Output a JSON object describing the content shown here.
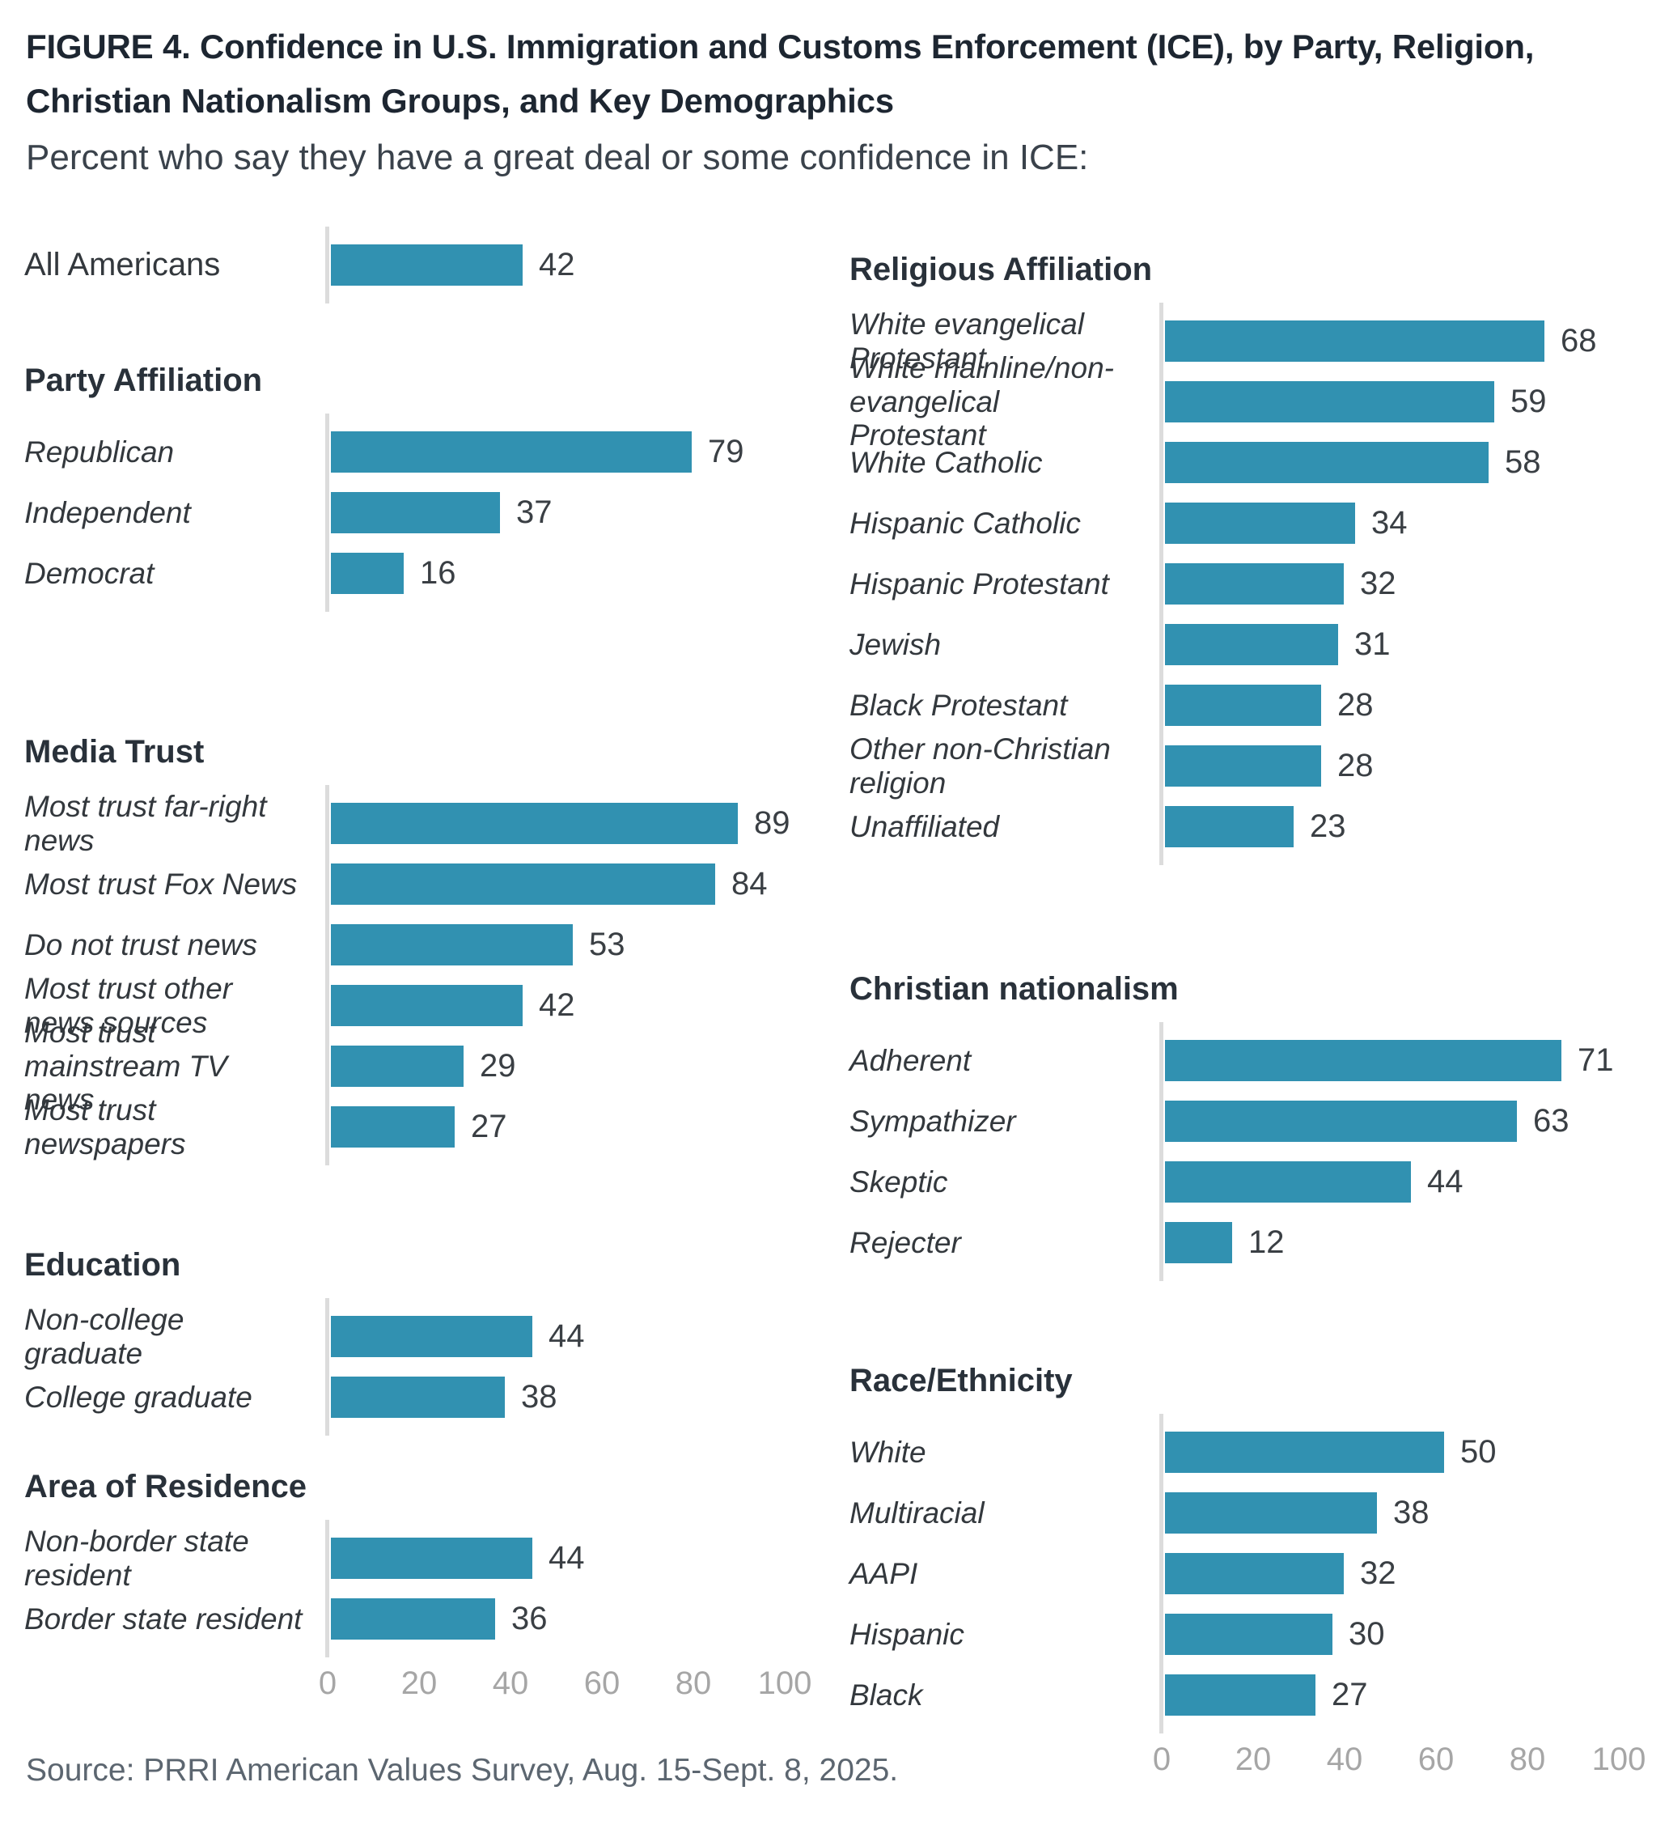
{
  "colors": {
    "bar": "#3191b1",
    "axis": "#dcdcdc",
    "tick": "#a6a6a6",
    "title": "#1d2631"
  },
  "chart_data": {
    "type": "bar",
    "orientation": "horizontal",
    "title": "FIGURE 4. Confidence in U.S. Immigration and Customs Enforcement (ICE), by Party, Religion, Christian Nationalism Groups, and Key Demographics",
    "subtitle": "Percent who say they have a great deal or some confidence in ICE:",
    "source": "Source: PRRI American Values Survey, Aug. 15-Sept. 8, 2025.",
    "unit": "percent",
    "xlim": [
      0,
      100
    ],
    "x_ticks": [
      0,
      20,
      40,
      60,
      80,
      100
    ],
    "grid": false,
    "legend": "none",
    "panels": [
      {
        "id": "left",
        "sections": [
          {
            "header": "",
            "rows": [
              {
                "label": "All Americans",
                "value": 42
              }
            ]
          },
          {
            "header": "Party Affiliation",
            "rows": [
              {
                "label": "Republican",
                "value": 79
              },
              {
                "label": "Independent",
                "value": 37
              },
              {
                "label": "Democrat",
                "value": 16
              }
            ]
          },
          {
            "header": "Media Trust",
            "rows": [
              {
                "label": "Most trust far-right news",
                "value": 89
              },
              {
                "label": "Most trust Fox News",
                "value": 84
              },
              {
                "label": "Do not trust news",
                "value": 53
              },
              {
                "label": "Most trust other news sources",
                "value": 42
              },
              {
                "label": "Most trust mainstream TV news",
                "value": 29
              },
              {
                "label": "Most trust newspapers",
                "value": 27
              }
            ]
          },
          {
            "header": "Education",
            "rows": [
              {
                "label": "Non-college graduate",
                "value": 44
              },
              {
                "label": "College graduate",
                "value": 38
              }
            ]
          },
          {
            "header": "Area of Residence",
            "rows": [
              {
                "label": "Non-border state resident",
                "value": 44
              },
              {
                "label": "Border state resident",
                "value": 36
              }
            ]
          }
        ]
      },
      {
        "id": "right",
        "sections": [
          {
            "header": "Religious Affiliation",
            "rows": [
              {
                "label": "White evangelical Protestant",
                "value": 68
              },
              {
                "label": "White mainline/non-evangelical Protestant",
                "value": 59
              },
              {
                "label": "White Catholic",
                "value": 58
              },
              {
                "label": "Hispanic Catholic",
                "value": 34
              },
              {
                "label": "Hispanic Protestant",
                "value": 32
              },
              {
                "label": "Jewish",
                "value": 31
              },
              {
                "label": "Black Protestant",
                "value": 28
              },
              {
                "label": "Other non-Christian religion",
                "value": 28
              },
              {
                "label": "Unaffiliated",
                "value": 23
              }
            ]
          },
          {
            "header": "Christian nationalism",
            "rows": [
              {
                "label": "Adherent",
                "value": 71
              },
              {
                "label": "Sympathizer",
                "value": 63
              },
              {
                "label": "Skeptic",
                "value": 44
              },
              {
                "label": "Rejecter",
                "value": 12
              }
            ]
          },
          {
            "header": "Race/Ethnicity",
            "rows": [
              {
                "label": "White",
                "value": 50
              },
              {
                "label": "Multiracial",
                "value": 38
              },
              {
                "label": "AAPI",
                "value": 32
              },
              {
                "label": "Hispanic",
                "value": 30
              },
              {
                "label": "Black",
                "value": 27
              }
            ]
          }
        ]
      }
    ]
  }
}
